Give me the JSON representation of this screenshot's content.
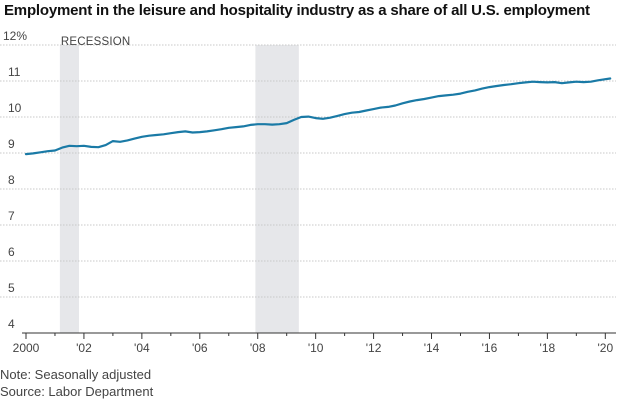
{
  "title": "Employment in the leisure and hospitality industry as a share of all U.S. employment",
  "note": "Note: Seasonally adjusted",
  "source": "Source: Labor Department",
  "recession_label": "RECESSION",
  "colors": {
    "line": "#1a7aa6",
    "recession": "#e6e7ea",
    "grid": "#c8c8c8",
    "axis": "#333333"
  },
  "chart_data": {
    "type": "line",
    "title": "Employment in the leisure and hospitality industry as a share of all U.S. employment",
    "xlabel": "",
    "ylabel": "",
    "ylim": [
      4,
      12
    ],
    "xlim": [
      2000,
      2020.3
    ],
    "grid": "horizontal",
    "y_ticks": [
      4,
      5,
      6,
      7,
      8,
      9,
      10,
      11,
      12
    ],
    "y_tick_labels": [
      "4",
      "5",
      "6",
      "7",
      "8",
      "9",
      "10",
      "11",
      "12%"
    ],
    "x_ticks": [
      2000,
      2002,
      2004,
      2006,
      2008,
      2010,
      2012,
      2014,
      2016,
      2018,
      2020
    ],
    "x_tick_labels": [
      "2000",
      "'02",
      "'04",
      "'06",
      "'08",
      "'10",
      "'12",
      "'14",
      "'16",
      "'18",
      "'20"
    ],
    "recessions": [
      {
        "start": 2001.17,
        "end": 2001.83
      },
      {
        "start": 2007.92,
        "end": 2009.42
      }
    ],
    "series": [
      {
        "x": [
          2000.0,
          2000.25,
          2000.5,
          2000.75,
          2001.0,
          2001.25,
          2001.5,
          2001.75,
          2002.0,
          2002.25,
          2002.5,
          2002.75,
          2003.0,
          2003.25,
          2003.5,
          2003.75,
          2004.0,
          2004.25,
          2004.5,
          2004.75,
          2005.0,
          2005.25,
          2005.5,
          2005.75,
          2006.0,
          2006.25,
          2006.5,
          2006.75,
          2007.0,
          2007.25,
          2007.5,
          2007.75,
          2008.0,
          2008.25,
          2008.5,
          2008.75,
          2009.0,
          2009.25,
          2009.5,
          2009.75,
          2010.0,
          2010.25,
          2010.5,
          2010.75,
          2011.0,
          2011.25,
          2011.5,
          2011.75,
          2012.0,
          2012.25,
          2012.5,
          2012.75,
          2013.0,
          2013.25,
          2013.5,
          2013.75,
          2014.0,
          2014.25,
          2014.5,
          2014.75,
          2015.0,
          2015.25,
          2015.5,
          2015.75,
          2016.0,
          2016.25,
          2016.5,
          2016.75,
          2017.0,
          2017.25,
          2017.5,
          2017.75,
          2018.0,
          2018.25,
          2018.5,
          2018.75,
          2019.0,
          2019.25,
          2019.5,
          2019.75,
          2020.0,
          2020.17
        ],
        "values": [
          8.97,
          8.99,
          9.02,
          9.05,
          9.07,
          9.15,
          9.2,
          9.19,
          9.2,
          9.17,
          9.16,
          9.22,
          9.33,
          9.31,
          9.35,
          9.4,
          9.45,
          9.48,
          9.5,
          9.52,
          9.55,
          9.58,
          9.6,
          9.57,
          9.58,
          9.6,
          9.63,
          9.66,
          9.7,
          9.72,
          9.74,
          9.78,
          9.8,
          9.8,
          9.79,
          9.8,
          9.83,
          9.92,
          10.0,
          10.01,
          9.97,
          9.95,
          9.98,
          10.03,
          10.08,
          10.12,
          10.14,
          10.18,
          10.22,
          10.26,
          10.28,
          10.32,
          10.38,
          10.43,
          10.47,
          10.5,
          10.54,
          10.58,
          10.6,
          10.62,
          10.65,
          10.7,
          10.74,
          10.79,
          10.83,
          10.86,
          10.89,
          10.91,
          10.94,
          10.96,
          10.98,
          10.97,
          10.96,
          10.97,
          10.94,
          10.96,
          10.98,
          10.97,
          10.98,
          11.02,
          11.05,
          11.07
        ]
      }
    ]
  }
}
